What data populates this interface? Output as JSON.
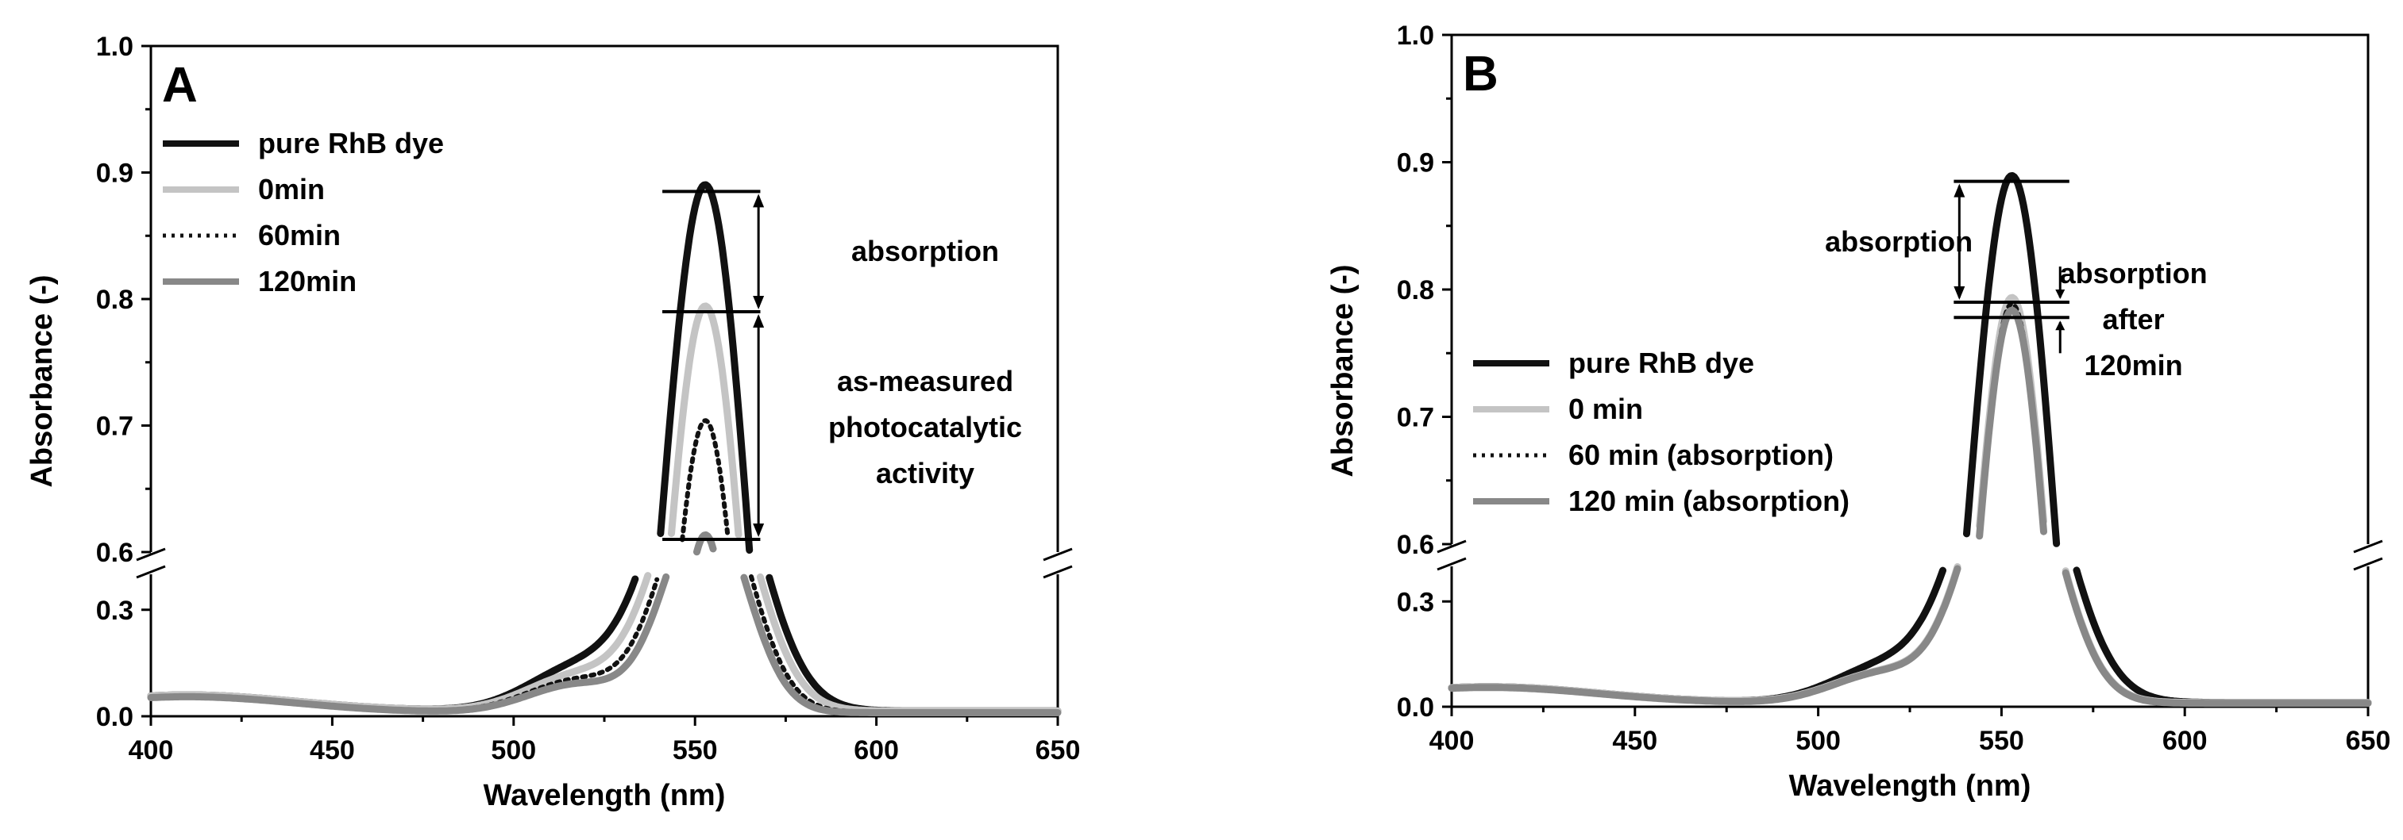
{
  "chart_data": [
    {
      "panel": "A",
      "type": "line",
      "xlabel": "Wavelength (nm)",
      "ylabel": "Absorbance (-)",
      "xlim": [
        400,
        650
      ],
      "xticks": [
        400,
        450,
        500,
        550,
        600,
        650
      ],
      "ylim_lower": [
        0.0,
        0.4
      ],
      "yticks_lower": [
        "0.0",
        "0.3"
      ],
      "ylim_upper": [
        0.6,
        1.0
      ],
      "yticks_upper": [
        "0.6",
        "0.7",
        "0.8",
        "0.9",
        "1.0"
      ],
      "axis_break": true,
      "legend": "top-left",
      "series": [
        {
          "name": "pure RhB dye",
          "color": "#111111",
          "dash": "solid",
          "peak": 0.885
        },
        {
          "name": "0min",
          "color": "#c4c4c4",
          "dash": "solid",
          "peak": 0.79
        },
        {
          "name": "60min",
          "color": "#111111",
          "dash": "dotted",
          "peak": 0.7
        },
        {
          "name": "120min",
          "color": "#888888",
          "dash": "solid",
          "peak": 0.61
        }
      ],
      "annotations": [
        {
          "id": "absorption",
          "lines": [
            "absorption"
          ],
          "from": 0.885,
          "to": 0.79
        },
        {
          "id": "activity",
          "lines": [
            "as-measured",
            "photocatalytic",
            "activity"
          ],
          "from": 0.79,
          "to": 0.61
        }
      ]
    },
    {
      "panel": "B",
      "type": "line",
      "xlabel": "Wavelength (nm)",
      "ylabel": "Absorbance (-)",
      "xlim": [
        400,
        650
      ],
      "xticks": [
        400,
        450,
        500,
        550,
        600,
        650
      ],
      "ylim_lower": [
        0.0,
        0.4
      ],
      "yticks_lower": [
        "0.0",
        "0.3"
      ],
      "ylim_upper": [
        0.6,
        1.0
      ],
      "yticks_upper": [
        "0.6",
        "0.7",
        "0.8",
        "0.9",
        "1.0"
      ],
      "axis_break": true,
      "legend": "center-left",
      "series": [
        {
          "name": "pure RhB dye",
          "color": "#111111",
          "dash": "solid",
          "peak": 0.885
        },
        {
          "name": "0 min",
          "color": "#c4c4c4",
          "dash": "solid",
          "peak": 0.79
        },
        {
          "name": "60 min (absorption)",
          "color": "#111111",
          "dash": "dotted",
          "peak": 0.785
        },
        {
          "name": "120 min (absorption)",
          "color": "#888888",
          "dash": "solid",
          "peak": 0.78
        }
      ],
      "annotations": [
        {
          "id": "absorption",
          "lines": [
            "absorption"
          ],
          "from": 0.885,
          "to": 0.79
        },
        {
          "id": "after",
          "lines": [
            "absorption",
            "after",
            "120min"
          ],
          "from": 0.79,
          "to": 0.778
        }
      ]
    }
  ]
}
